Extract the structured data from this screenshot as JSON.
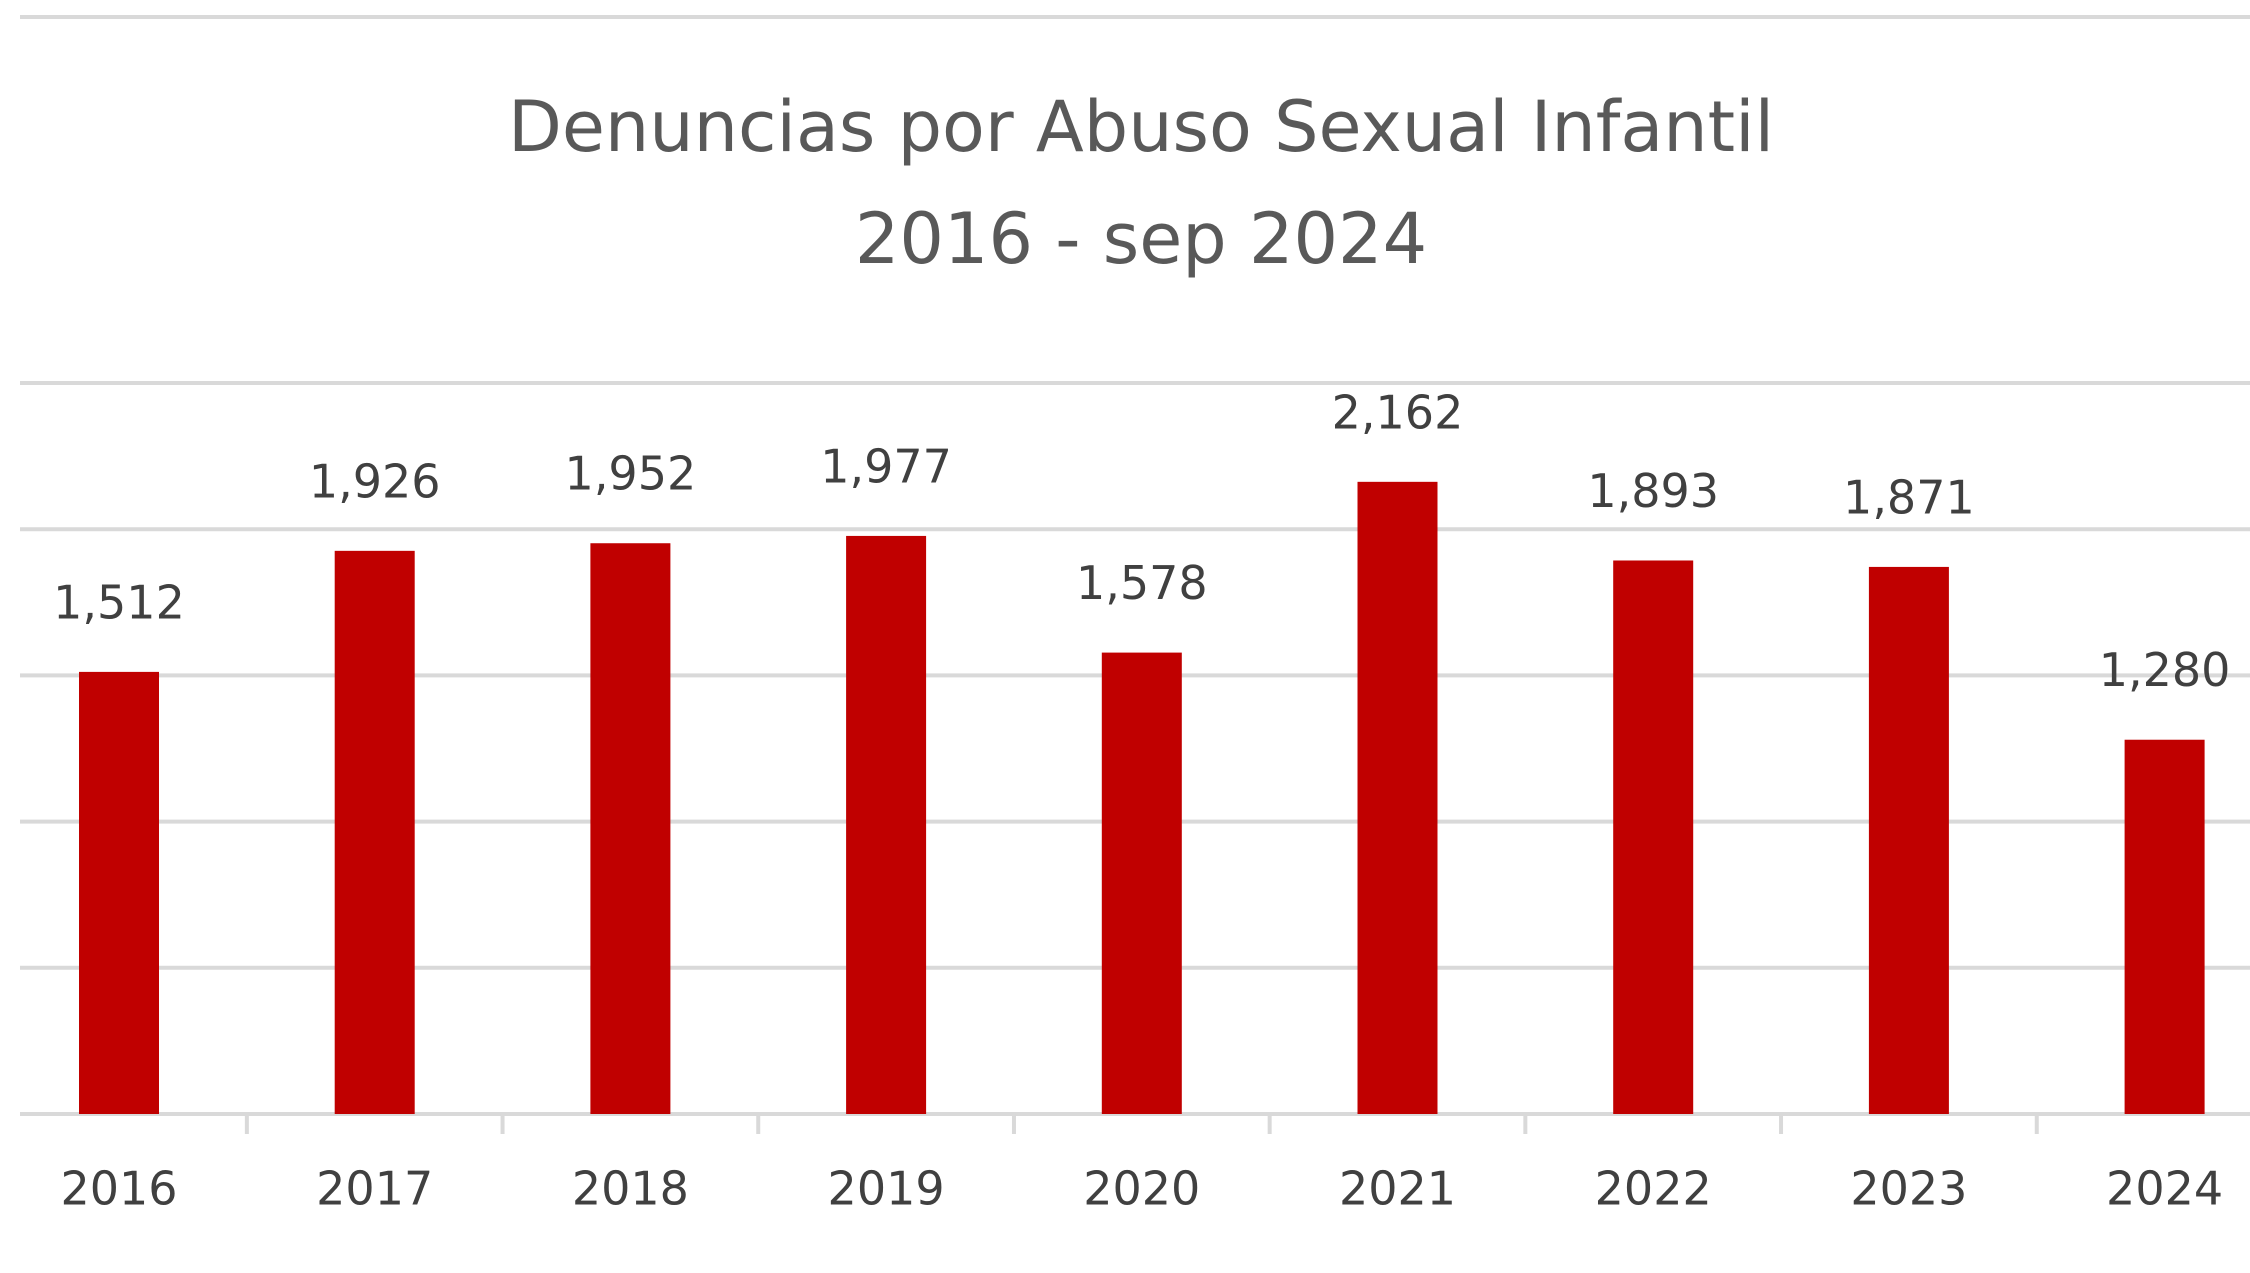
{
  "chart_data": {
    "type": "bar",
    "title": "Denuncias por Abuso Sexual Infantil",
    "subtitle": "2016 - sep 2024",
    "categories": [
      "2016",
      "2017",
      "2018",
      "2019",
      "2020",
      "2021",
      "2022",
      "2023",
      "2024"
    ],
    "values": [
      1512,
      1926,
      1952,
      1977,
      1578,
      2162,
      1893,
      1871,
      1280
    ],
    "value_labels": [
      "1,512",
      "1,926",
      "1,952",
      "1,977",
      "1,578",
      "2,162",
      "1,893",
      "1,871",
      "1,280"
    ],
    "color": "#c00000",
    "ylim": [
      0,
      2500
    ],
    "yticks": [
      0,
      500,
      1000,
      1500,
      2000,
      2500
    ],
    "grid": true
  }
}
